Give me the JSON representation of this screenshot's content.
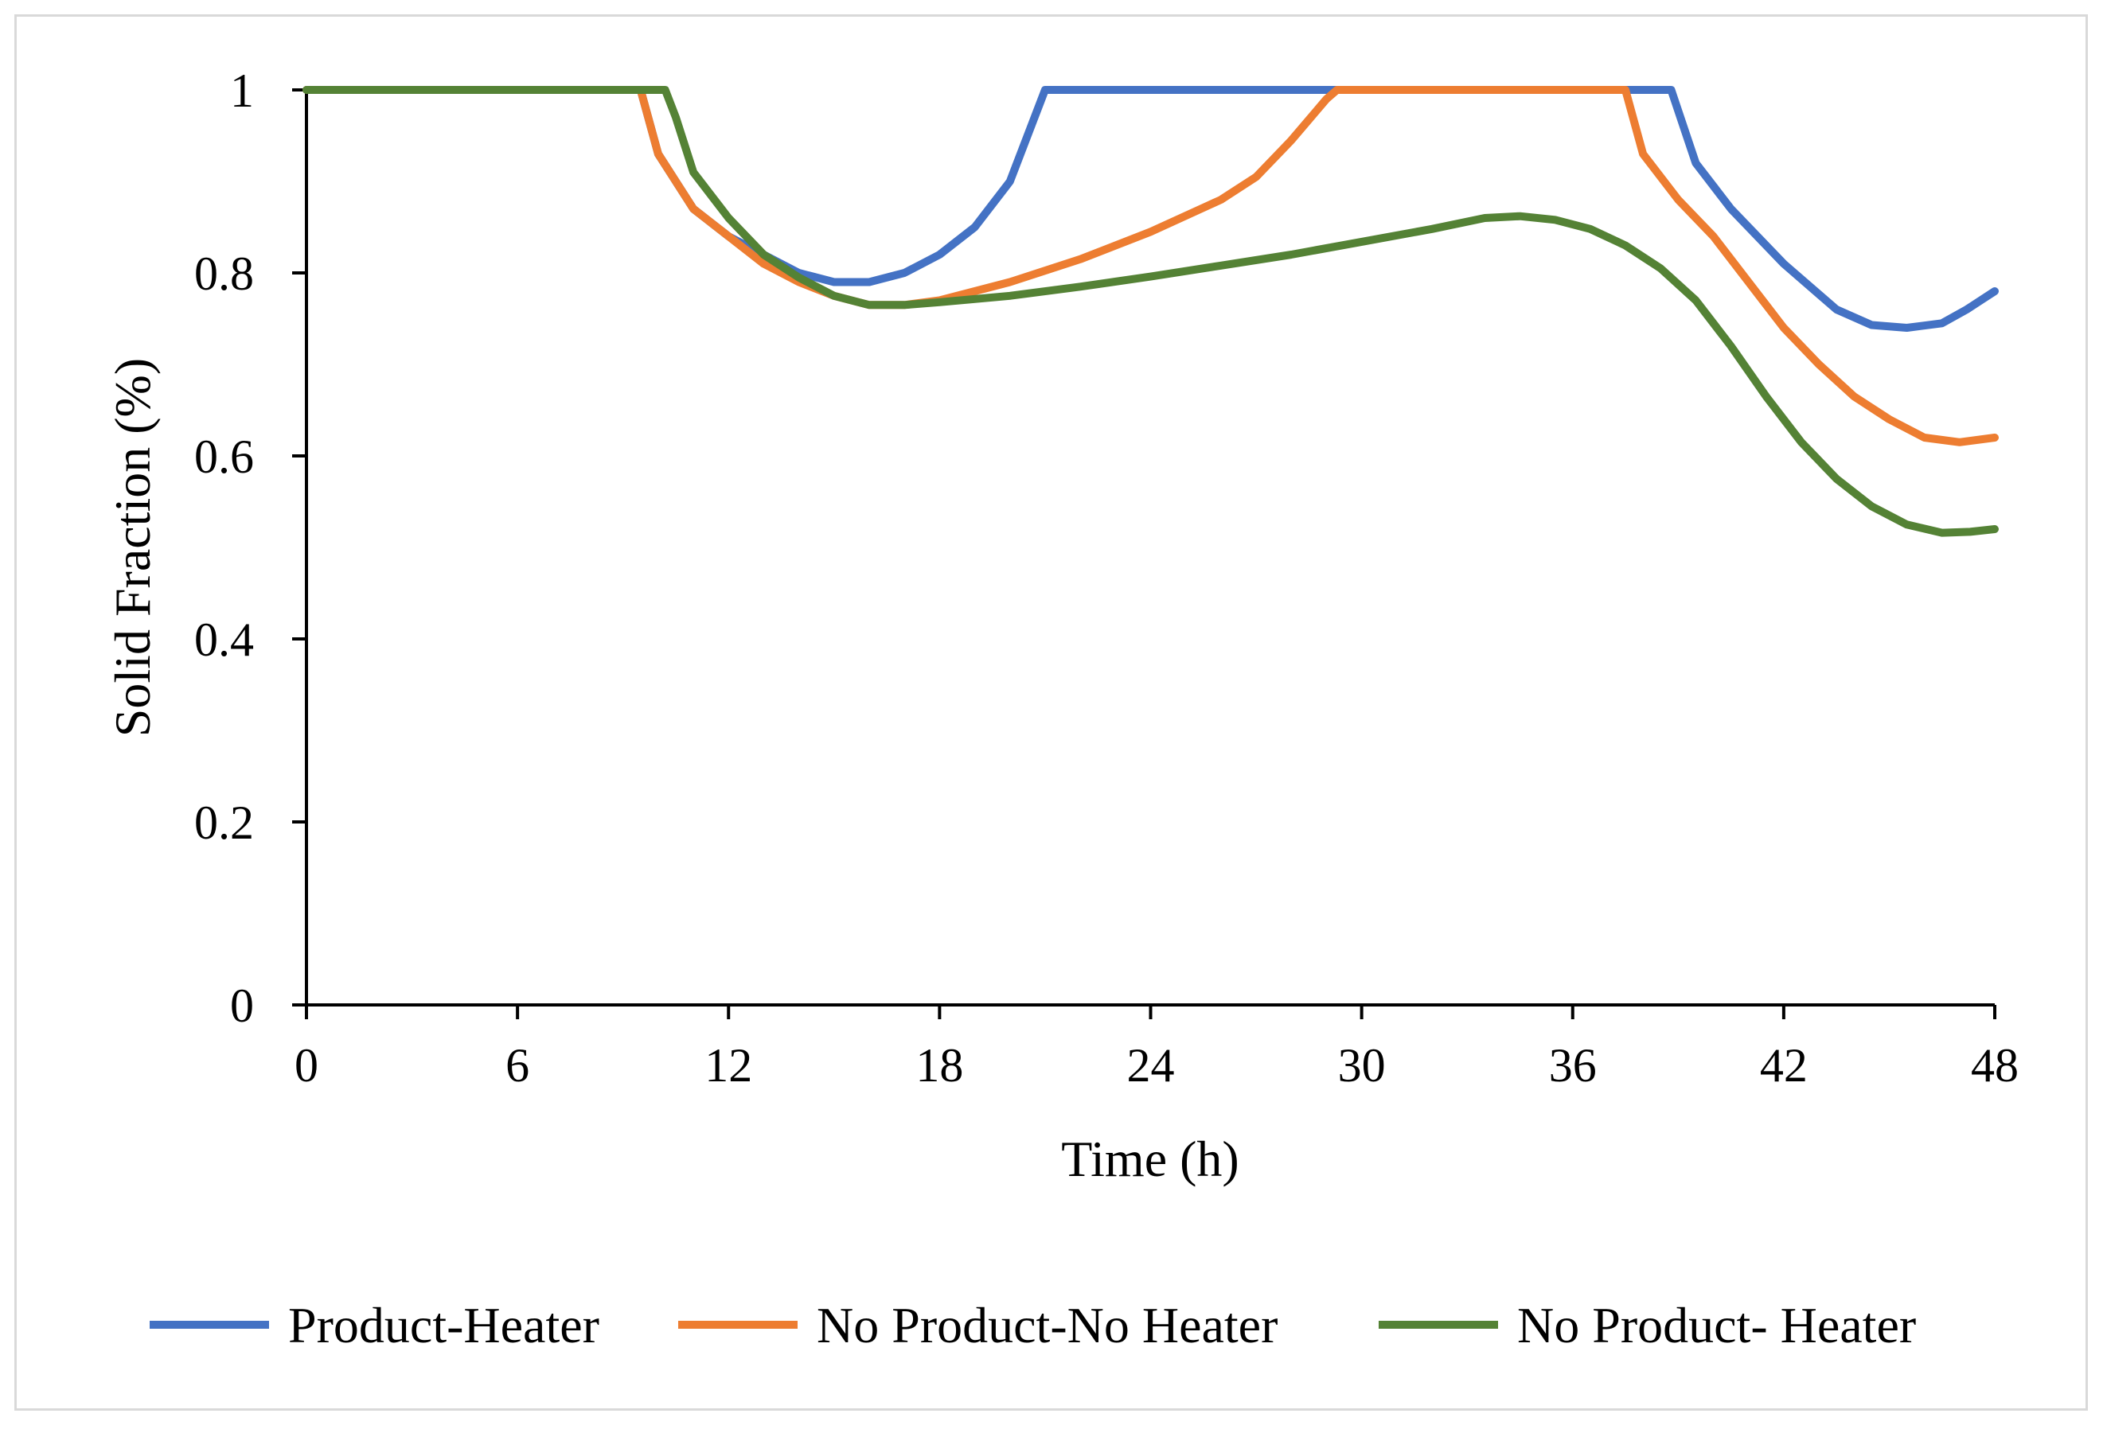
{
  "chart_data": {
    "type": "line",
    "title": "",
    "xlabel": "Time (h)",
    "ylabel": "Solid Fraction (%)",
    "xlim": [
      0,
      48
    ],
    "ylim": [
      0,
      1
    ],
    "xticks": [
      0,
      6,
      12,
      18,
      24,
      30,
      36,
      42,
      48
    ],
    "xtick_labels": [
      "0",
      "6",
      "12",
      "18",
      "24",
      "30",
      "36",
      "42",
      "48"
    ],
    "yticks": [
      0,
      0.2,
      0.4,
      0.6,
      0.8,
      1
    ],
    "ytick_labels": [
      "0",
      "0.2",
      "0.4",
      "0.6",
      "0.8",
      "1"
    ],
    "grid": false,
    "legend_position": "bottom",
    "series": [
      {
        "name": "Product-Heater",
        "color": "#4472c4",
        "points": [
          [
            0,
            1
          ],
          [
            9.5,
            1
          ],
          [
            10,
            0.93
          ],
          [
            11,
            0.87
          ],
          [
            12,
            0.84
          ],
          [
            13,
            0.82
          ],
          [
            14,
            0.8
          ],
          [
            15,
            0.79
          ],
          [
            16,
            0.79
          ],
          [
            17,
            0.8
          ],
          [
            18,
            0.82
          ],
          [
            19,
            0.85
          ],
          [
            20,
            0.9
          ],
          [
            21,
            1
          ],
          [
            30,
            1
          ],
          [
            38.8,
            1
          ],
          [
            39.5,
            0.92
          ],
          [
            40.5,
            0.87
          ],
          [
            42,
            0.81
          ],
          [
            43.5,
            0.76
          ],
          [
            44.5,
            0.743
          ],
          [
            45.5,
            0.74
          ],
          [
            46.5,
            0.745
          ],
          [
            47.2,
            0.76
          ],
          [
            48,
            0.78
          ]
        ]
      },
      {
        "name": "No Product-No Heater",
        "color": "#ed7d31",
        "points": [
          [
            0,
            1
          ],
          [
            9.5,
            1
          ],
          [
            10,
            0.93
          ],
          [
            11,
            0.87
          ],
          [
            12,
            0.84
          ],
          [
            13,
            0.81
          ],
          [
            14,
            0.79
          ],
          [
            15,
            0.775
          ],
          [
            16,
            0.765
          ],
          [
            17,
            0.765
          ],
          [
            18,
            0.77
          ],
          [
            20,
            0.79
          ],
          [
            22,
            0.815
          ],
          [
            24,
            0.845
          ],
          [
            26,
            0.88
          ],
          [
            27,
            0.905
          ],
          [
            28,
            0.945
          ],
          [
            29,
            0.99
          ],
          [
            29.3,
            1
          ],
          [
            37.5,
            1
          ],
          [
            38,
            0.93
          ],
          [
            39,
            0.88
          ],
          [
            40,
            0.84
          ],
          [
            41,
            0.79
          ],
          [
            42,
            0.74
          ],
          [
            43,
            0.7
          ],
          [
            44,
            0.665
          ],
          [
            45,
            0.64
          ],
          [
            46,
            0.62
          ],
          [
            47,
            0.615
          ],
          [
            48,
            0.62
          ]
        ]
      },
      {
        "name": "No Product- Heater",
        "color": "#548235",
        "points": [
          [
            0,
            1
          ],
          [
            10.2,
            1
          ],
          [
            10.5,
            0.97
          ],
          [
            11,
            0.91
          ],
          [
            12,
            0.86
          ],
          [
            13,
            0.82
          ],
          [
            14,
            0.795
          ],
          [
            15,
            0.775
          ],
          [
            16,
            0.765
          ],
          [
            17,
            0.765
          ],
          [
            18,
            0.768
          ],
          [
            20,
            0.775
          ],
          [
            22,
            0.785
          ],
          [
            24,
            0.796
          ],
          [
            26,
            0.808
          ],
          [
            28,
            0.82
          ],
          [
            30,
            0.834
          ],
          [
            32,
            0.848
          ],
          [
            33.5,
            0.86
          ],
          [
            34.5,
            0.862
          ],
          [
            35.5,
            0.858
          ],
          [
            36.5,
            0.848
          ],
          [
            37.5,
            0.83
          ],
          [
            38.5,
            0.805
          ],
          [
            39.5,
            0.77
          ],
          [
            40.5,
            0.72
          ],
          [
            41.5,
            0.665
          ],
          [
            42.5,
            0.615
          ],
          [
            43.5,
            0.575
          ],
          [
            44.5,
            0.545
          ],
          [
            45.5,
            0.525
          ],
          [
            46.5,
            0.516
          ],
          [
            47.3,
            0.517
          ],
          [
            48,
            0.52
          ]
        ]
      }
    ]
  }
}
